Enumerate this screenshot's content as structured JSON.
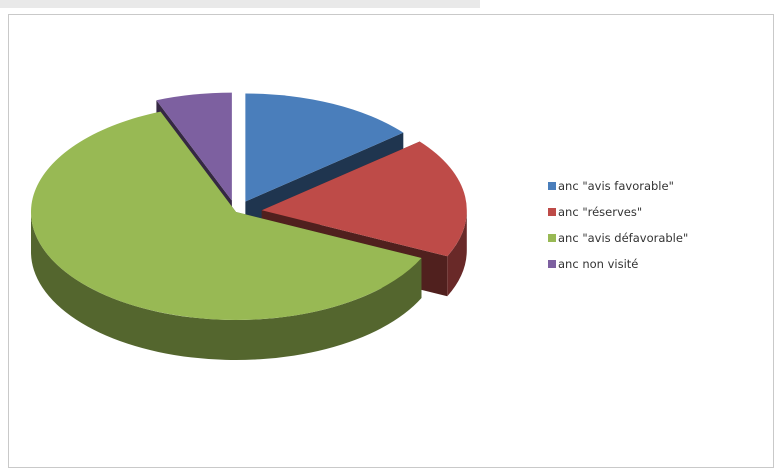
{
  "chart_data": {
    "type": "pie",
    "style": "3d-exploded",
    "title": "",
    "categories": [
      "anc \"avis favorable\"",
      "anc \"réserves\"",
      "anc \"avis défavorable\"",
      "anc non visité"
    ],
    "values": [
      14,
      18,
      62,
      6
    ],
    "unit": "percent (estimated)",
    "colors": [
      "#4a7ebb",
      "#be4b48",
      "#98b954",
      "#7d60a0"
    ],
    "legend_position": "right"
  }
}
